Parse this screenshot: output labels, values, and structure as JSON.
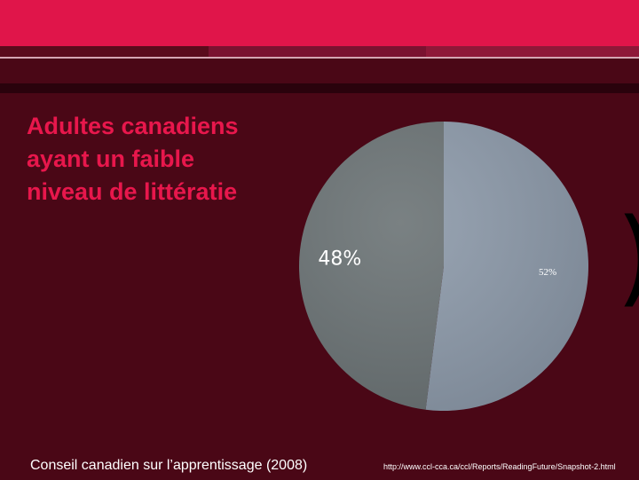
{
  "slide": {
    "title_lines": [
      "Adultes canadiens",
      "ayant un faible",
      "niveau de littératie"
    ],
    "decorative_paren": ")"
  },
  "footer": {
    "source": "Conseil canadien sur l’apprentissage (2008)",
    "url": "http://www.ccl-cca.ca/ccl/Reports/ReadingFuture/Snapshot-2.html"
  },
  "colors": {
    "background": "#4a0716",
    "accent": "#e0154a",
    "title": "#e8174c",
    "slice_light": "#8d9aaa",
    "slice_dark": "#6b7375"
  },
  "chart_data": {
    "type": "pie",
    "slices": [
      {
        "value": 52,
        "label": "52%",
        "color": "#8d9aaa"
      },
      {
        "value": 48,
        "label": "48%",
        "color": "#6b7375"
      }
    ]
  }
}
